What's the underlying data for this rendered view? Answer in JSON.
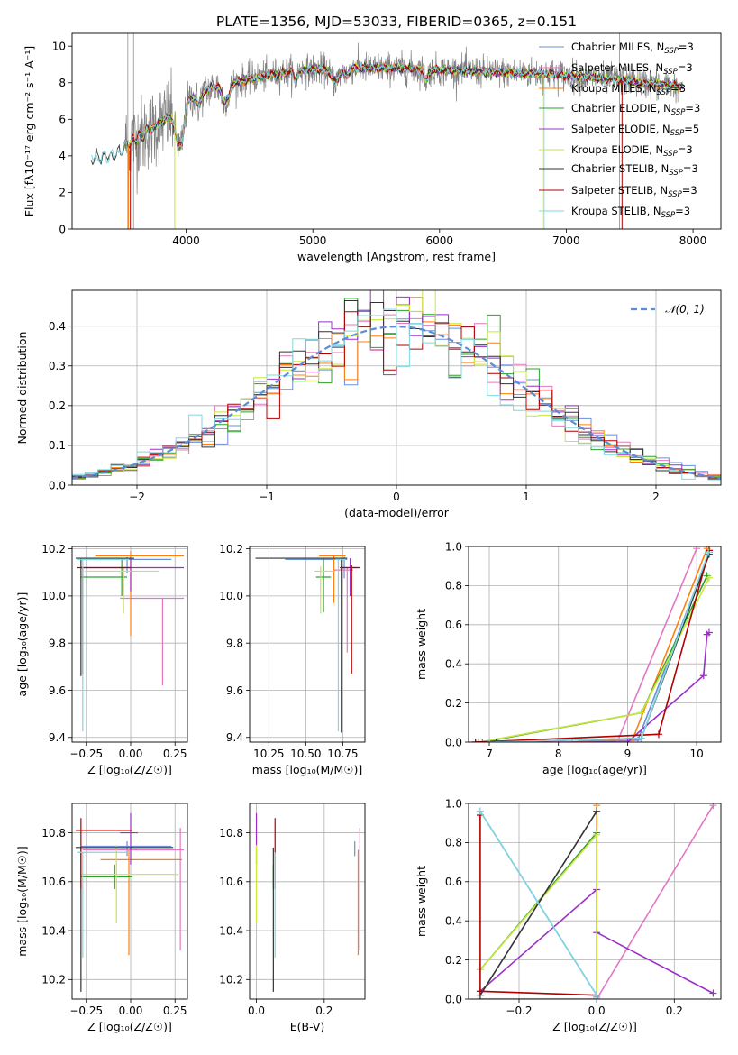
{
  "figure_title": "PLATE=1356, MJD=53033, FIBERID=0365, z=0.151",
  "colors": {
    "chabrier_miles": "#6b8fd6",
    "salpeter_miles": "#e377c2",
    "kroupa_miles": "#ff7f0e",
    "chabrier_elodie": "#2ca02c",
    "salpeter_elodie": "#9b30c8",
    "kroupa_elodie": "#c8e63c",
    "chabrier_stelib": "#333333",
    "salpeter_stelib": "#b00000",
    "kroupa_stelib": "#7fd7e0",
    "data": "#808080",
    "gaussian": "#5b8dd6"
  },
  "chart_data": [
    {
      "id": "spectrum",
      "type": "line",
      "title": "PLATE=1356, MJD=53033, FIBERID=0365, z=0.151",
      "xlabel": "wavelength [Angstrom, rest frame]",
      "ylabel": "Flux [fλ10⁻¹⁷ erg cm⁻² s⁻¹ A⁻¹]",
      "xlim": [
        3100,
        8220
      ],
      "ylim": [
        0,
        10.7
      ],
      "xticks": [
        4000,
        5000,
        6000,
        7000,
        8000
      ],
      "yticks": [
        0,
        2,
        4,
        6,
        8,
        10
      ],
      "grid": false,
      "legend_position": "top-right",
      "legend": [
        "Chabrier MILES, N_SSP=3",
        "Salpeter MILES, N_SSP=3",
        "Kroupa MILES, N_SSP=3",
        "Chabrier ELODIE, N_SSP=3",
        "Salpeter ELODIE, N_SSP=5",
        "Kroupa ELODIE, N_SSP=3",
        "Chabrier STELIB, N_SSP=3",
        "Salpeter STELIB, N_SSP=3",
        "Kroupa STELIB, N_SSP=3"
      ],
      "continuum": {
        "x": [
          3300,
          3450,
          3600,
          3800,
          4000,
          4200,
          4500,
          4800,
          5000,
          5300,
          5600,
          6000,
          6400,
          6800,
          7200,
          7600,
          7900
        ],
        "y": [
          3.9,
          4.1,
          4.9,
          5.8,
          7.0,
          7.7,
          8.2,
          8.6,
          8.7,
          8.8,
          8.8,
          8.7,
          8.6,
          8.5,
          8.3,
          8.0,
          7.8
        ]
      }
    },
    {
      "id": "residuals",
      "type": "line",
      "xlabel": "(data-model)/error",
      "ylabel": "Normed distribution",
      "xlim": [
        -2.5,
        2.5
      ],
      "ylim": [
        0,
        0.49
      ],
      "xticks": [
        -2,
        -1,
        0,
        1,
        2
      ],
      "yticks": [
        0.0,
        0.1,
        0.2,
        0.3,
        0.4
      ],
      "grid": true,
      "legend_position": "top-right",
      "legend": [
        "𝒩(0, 1)"
      ],
      "bin_width": 0.1
    },
    {
      "id": "age_vs_z",
      "type": "scatter",
      "xlabel": "Z [log₁₀(Z/Z☉)]",
      "ylabel": "age  [log₁₀(age/yr)]",
      "xlim": [
        -0.33,
        0.32
      ],
      "ylim": [
        9.38,
        10.21
      ],
      "xticks": [
        -0.25,
        0.0,
        0.25
      ],
      "yticks": [
        9.4,
        9.6,
        9.8,
        10.0,
        10.2
      ],
      "grid": true,
      "points": [
        {
          "model": "chabrier_miles",
          "x": -0.02,
          "y": 10.155,
          "xerr": [
            0.26,
            0.25
          ],
          "yerr": [
            0.06,
            0.01
          ]
        },
        {
          "model": "salpeter_miles",
          "x": 0.18,
          "y": 9.99,
          "xerr": [
            0.24,
            0.12
          ],
          "yerr": [
            0.37,
            0.0
          ]
        },
        {
          "model": "kroupa_miles",
          "x": 0.0,
          "y": 10.17,
          "xerr": [
            0.2,
            0.3
          ],
          "yerr": [
            0.34,
            0.02
          ]
        },
        {
          "model": "chabrier_elodie",
          "x": -0.05,
          "y": 10.08,
          "xerr": [
            0.23,
            0.03
          ],
          "yerr": [
            0.08,
            0.08
          ]
        },
        {
          "model": "salpeter_elodie",
          "x": 0.0,
          "y": 10.12,
          "xerr": [
            0.27,
            0.3
          ],
          "yerr": [
            0.1,
            0.04
          ]
        },
        {
          "model": "kroupa_elodie",
          "x": -0.04,
          "y": 10.105,
          "xerr": [
            0.22,
            0.2
          ],
          "yerr": [
            0.18,
            0.02
          ]
        },
        {
          "model": "chabrier_stelib",
          "x": -0.28,
          "y": 10.16,
          "xerr": [
            0.03,
            0.3
          ],
          "yerr": [
            0.5,
            0.0
          ]
        },
        {
          "model": "salpeter_stelib",
          "x": -0.27,
          "y": 10.12,
          "xerr": [
            0.03,
            0.27
          ],
          "yerr": [
            0.45,
            0.0
          ]
        },
        {
          "model": "kroupa_stelib",
          "x": -0.27,
          "y": 10.155,
          "xerr": [
            0.03,
            0.26
          ],
          "yerr": [
            0.73,
            0.0
          ]
        }
      ]
    },
    {
      "id": "age_vs_mass",
      "type": "scatter",
      "xlabel": "mass [log₁₀(M/M☉)]",
      "ylabel": "",
      "xlim": [
        10.12,
        10.9
      ],
      "ylim": [
        9.38,
        10.21
      ],
      "xticks": [
        10.25,
        10.5,
        10.75
      ],
      "yticks": [
        9.4,
        9.6,
        9.8,
        10.0,
        10.2
      ],
      "tick_labels_x": [
        "10.25",
        "10.50",
        "10.75"
      ],
      "grid": true,
      "points": [
        {
          "model": "chabrier_miles",
          "x": 10.76,
          "y": 10.155,
          "xerr": [
            0.4,
            0.02
          ],
          "yerr": [
            0.08,
            0.01
          ]
        },
        {
          "model": "salpeter_miles",
          "x": 10.78,
          "y": 10.11,
          "xerr": [
            0.09,
            0.04
          ],
          "yerr": [
            0.35,
            0.01
          ]
        },
        {
          "model": "kroupa_miles",
          "x": 10.69,
          "y": 10.17,
          "xerr": [
            0.1,
            0.08
          ],
          "yerr": [
            0.2,
            0.0
          ]
        },
        {
          "model": "chabrier_elodie",
          "x": 10.62,
          "y": 10.08,
          "xerr": [
            0.05,
            0.05
          ],
          "yerr": [
            0.15,
            0.08
          ]
        },
        {
          "model": "salpeter_elodie",
          "x": 10.8,
          "y": 10.12,
          "xerr": [
            0.05,
            0.05
          ],
          "yerr": [
            0.12,
            0.04
          ]
        },
        {
          "model": "kroupa_elodie",
          "x": 10.6,
          "y": 10.105,
          "xerr": [
            0.04,
            0.1
          ],
          "yerr": [
            0.18,
            0.02
          ]
        },
        {
          "model": "chabrier_stelib",
          "x": 10.74,
          "y": 10.16,
          "xerr": [
            0.58,
            0.04
          ],
          "yerr": [
            0.74,
            0.0
          ]
        },
        {
          "model": "salpeter_stelib",
          "x": 10.81,
          "y": 10.12,
          "xerr": [
            0.08,
            0.06
          ],
          "yerr": [
            0.45,
            0.01
          ]
        },
        {
          "model": "kroupa_stelib",
          "x": 10.72,
          "y": 10.155,
          "xerr": [
            0.02,
            0.05
          ],
          "yerr": [
            0.73,
            0.0
          ]
        }
      ]
    },
    {
      "id": "massweight_vs_age",
      "type": "line",
      "xlabel": "age  [log₁₀(age/yr)]",
      "ylabel": "mass weight",
      "xlim": [
        6.7,
        10.35
      ],
      "ylim": [
        0,
        1.0
      ],
      "xticks": [
        7,
        8,
        9,
        10
      ],
      "yticks": [
        0.0,
        0.2,
        0.4,
        0.6,
        0.8,
        1.0
      ],
      "grid": true,
      "series": [
        {
          "model": "chabrier_miles",
          "x": [
            8.3,
            9.15,
            10.18
          ],
          "y": [
            0.0,
            0.01,
            0.97
          ]
        },
        {
          "model": "salpeter_miles",
          "x": [
            8.85,
            10.0
          ],
          "y": [
            0.0,
            0.99
          ]
        },
        {
          "model": "kroupa_miles",
          "x": [
            8.2,
            9.08,
            10.15
          ],
          "y": [
            0.0,
            0.02,
            0.99
          ]
        },
        {
          "model": "chabrier_elodie",
          "x": [
            6.9,
            9.2,
            10.15
          ],
          "y": [
            0.0,
            0.15,
            0.85
          ]
        },
        {
          "model": "salpeter_elodie",
          "x": [
            6.8,
            9.0,
            10.1,
            10.15,
            10.18
          ],
          "y": [
            0.0,
            0.0,
            0.34,
            0.55,
            0.56
          ]
        },
        {
          "model": "kroupa_elodie",
          "x": [
            6.85,
            9.2,
            10.18
          ],
          "y": [
            0.0,
            0.15,
            0.84
          ]
        },
        {
          "model": "chabrier_stelib",
          "x": [
            7.1,
            9.2,
            10.18
          ],
          "y": [
            0.0,
            0.02,
            0.96
          ]
        },
        {
          "model": "salpeter_stelib",
          "x": [
            6.8,
            9.45,
            10.18
          ],
          "y": [
            0.0,
            0.04,
            0.98
          ]
        },
        {
          "model": "kroupa_stelib",
          "x": [
            7.0,
            9.2,
            10.17
          ],
          "y": [
            0.0,
            0.02,
            0.97
          ]
        }
      ]
    },
    {
      "id": "mass_vs_z",
      "type": "scatter",
      "xlabel": "Z [log₁₀(Z/Z☉)]",
      "ylabel": "mass [log₁₀(M/M☉)]",
      "xlim": [
        -0.33,
        0.32
      ],
      "ylim": [
        10.12,
        10.92
      ],
      "xticks": [
        -0.25,
        0.0,
        0.25
      ],
      "yticks": [
        10.2,
        10.4,
        10.6,
        10.8
      ],
      "grid": true,
      "points": [
        {
          "model": "chabrier_miles",
          "x": -0.02,
          "y": 10.745,
          "xerr": [
            0.26,
            0.25
          ],
          "yerr": [
            0.04,
            0.02
          ]
        },
        {
          "model": "salpeter_miles",
          "x": 0.28,
          "y": 10.73,
          "xerr": [
            0.55,
            0.02
          ],
          "yerr": [
            0.41,
            0.09
          ]
        },
        {
          "model": "kroupa_miles",
          "x": -0.01,
          "y": 10.69,
          "xerr": [
            0.16,
            0.3
          ],
          "yerr": [
            0.39,
            0.04
          ]
        },
        {
          "model": "chabrier_elodie",
          "x": -0.09,
          "y": 10.62,
          "xerr": [
            0.19,
            0.1
          ],
          "yerr": [
            0.05,
            0.05
          ]
        },
        {
          "model": "salpeter_elodie",
          "x": 0.0,
          "y": 10.8,
          "xerr": [
            0.06,
            0.04
          ],
          "yerr": [
            0.13,
            0.08
          ]
        },
        {
          "model": "kroupa_elodie",
          "x": -0.08,
          "y": 10.63,
          "xerr": [
            0.2,
            0.35
          ],
          "yerr": [
            0.2,
            0.12
          ]
        },
        {
          "model": "chabrier_stelib",
          "x": -0.28,
          "y": 10.74,
          "xerr": [
            0.03,
            0.52
          ],
          "yerr": [
            0.59,
            0.0
          ]
        },
        {
          "model": "salpeter_stelib",
          "x": -0.28,
          "y": 10.81,
          "xerr": [
            0.03,
            0.29
          ],
          "yerr": [
            0.24,
            0.05
          ]
        },
        {
          "model": "kroupa_stelib",
          "x": -0.27,
          "y": 10.72,
          "xerr": [
            0.03,
            0.25
          ],
          "yerr": [
            0.43,
            0.0
          ]
        }
      ]
    },
    {
      "id": "mass_vs_ebv",
      "type": "scatter",
      "xlabel": "E(B-V)",
      "ylabel": "",
      "xlim": [
        -0.02,
        0.32
      ],
      "ylim": [
        10.12,
        10.92
      ],
      "xticks": [
        0.0,
        0.2
      ],
      "yticks": [
        10.2,
        10.4,
        10.6,
        10.8
      ],
      "grid": true,
      "points": [
        {
          "model": "chabrier_miles",
          "x": 0.29,
          "y": 10.745,
          "yerr": [
            0.04,
            0.02
          ]
        },
        {
          "model": "salpeter_miles",
          "x": 0.305,
          "y": 10.73,
          "yerr": [
            0.41,
            0.09
          ]
        },
        {
          "model": "kroupa_miles",
          "x": 0.3,
          "y": 10.69,
          "yerr": [
            0.39,
            0.04
          ]
        },
        {
          "model": "chabrier_elodie",
          "x": 0.05,
          "y": 10.62,
          "yerr": [
            0.05,
            0.05
          ]
        },
        {
          "model": "salpeter_elodie",
          "x": 0.0,
          "y": 10.8,
          "yerr": [
            0.13,
            0.08
          ]
        },
        {
          "model": "kroupa_elodie",
          "x": 0.0,
          "y": 10.63,
          "yerr": [
            0.2,
            0.12
          ]
        },
        {
          "model": "chabrier_stelib",
          "x": 0.05,
          "y": 10.74,
          "yerr": [
            0.59,
            0.0
          ]
        },
        {
          "model": "salpeter_stelib",
          "x": 0.055,
          "y": 10.81,
          "yerr": [
            0.24,
            0.05
          ]
        },
        {
          "model": "kroupa_stelib",
          "x": 0.055,
          "y": 10.72,
          "yerr": [
            0.43,
            0.0
          ]
        }
      ]
    },
    {
      "id": "massweight_vs_z",
      "type": "line",
      "xlabel": "Z [log₁₀(Z/Z☉)]",
      "ylabel": "mass weight",
      "xlim": [
        -0.33,
        0.32
      ],
      "ylim": [
        0,
        1.0
      ],
      "xticks": [
        -0.2,
        0.0,
        0.2
      ],
      "yticks": [
        0.0,
        0.2,
        0.4,
        0.6,
        0.8,
        1.0
      ],
      "grid": true,
      "series": [
        {
          "model": "chabrier_miles",
          "x": [
            -0.3,
            0.0,
            0.0
          ],
          "y": [
            0.96,
            0.02,
            0.01
          ]
        },
        {
          "model": "salpeter_miles",
          "x": [
            0.0,
            0.3
          ],
          "y": [
            0.0,
            0.99
          ]
        },
        {
          "model": "kroupa_miles",
          "x": [
            -0.3,
            0.0,
            0.0
          ],
          "y": [
            0.0,
            0.0,
            0.99
          ]
        },
        {
          "model": "chabrier_elodie",
          "x": [
            -0.3,
            0.0,
            0.0
          ],
          "y": [
            0.15,
            0.85,
            0.0
          ]
        },
        {
          "model": "salpeter_elodie",
          "x": [
            -0.3,
            0.0,
            0.0,
            0.3
          ],
          "y": [
            0.04,
            0.56,
            0.34,
            0.03
          ]
        },
        {
          "model": "kroupa_elodie",
          "x": [
            -0.3,
            0.0,
            0.0
          ],
          "y": [
            0.15,
            0.84,
            0.0
          ]
        },
        {
          "model": "chabrier_stelib",
          "x": [
            -0.3,
            0.0
          ],
          "y": [
            0.02,
            0.96
          ]
        },
        {
          "model": "salpeter_stelib",
          "x": [
            -0.3,
            -0.3,
            0.0
          ],
          "y": [
            0.94,
            0.04,
            0.02
          ]
        },
        {
          "model": "kroupa_stelib",
          "x": [
            -0.3,
            0.0,
            0.0
          ],
          "y": [
            0.96,
            0.02,
            0.0
          ]
        }
      ]
    }
  ]
}
